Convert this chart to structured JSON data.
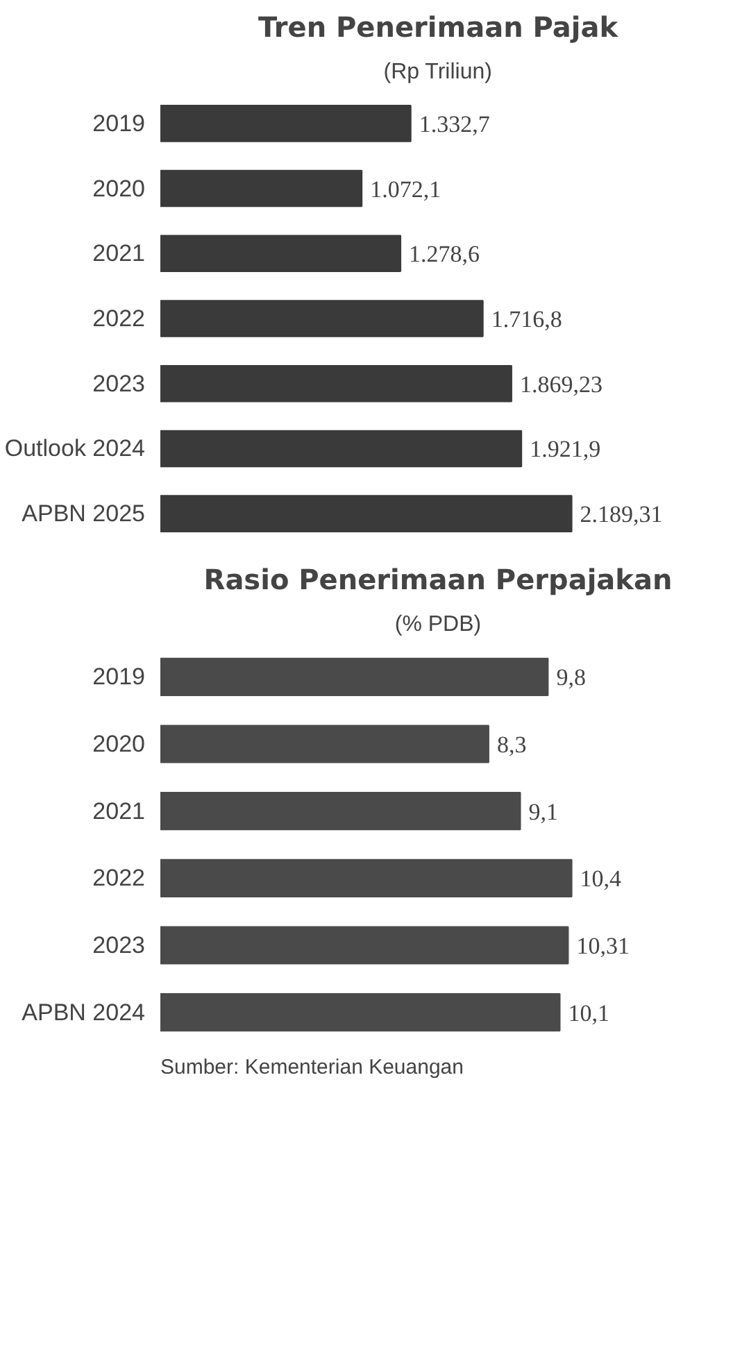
{
  "chart_data": [
    {
      "type": "bar",
      "orientation": "horizontal",
      "title": "Tren Penerimaan Pajak",
      "subtitle": "(Rp Triliun)",
      "categories": [
        "2019",
        "2020",
        "2021",
        "2022",
        "2023",
        "Outlook 2024",
        "APBN 2025"
      ],
      "values": [
        1332.7,
        1072.1,
        1278.6,
        1716.8,
        1869.23,
        1921.9,
        2189.31
      ],
      "value_labels": [
        "1.332,7",
        "1.072,1",
        "1.278,6",
        "1.716,8",
        "1.869,23",
        "1.921,9",
        "2.189,31"
      ],
      "color": "#3a3a3a"
    },
    {
      "type": "bar",
      "orientation": "horizontal",
      "title": "Rasio Penerimaan Perpajakan",
      "subtitle": "(% PDB)",
      "categories": [
        "2019",
        "2020",
        "2021",
        "2022",
        "2023",
        "APBN 2024"
      ],
      "values": [
        9.8,
        8.3,
        9.1,
        10.4,
        10.31,
        10.1
      ],
      "value_labels": [
        "9,8",
        "8,3",
        "9,1",
        "10,4",
        "10,31",
        "10,1"
      ],
      "color": "#4a4a4a",
      "annotations": [
        "Sumber: Kementerian Keuangan"
      ]
    }
  ]
}
